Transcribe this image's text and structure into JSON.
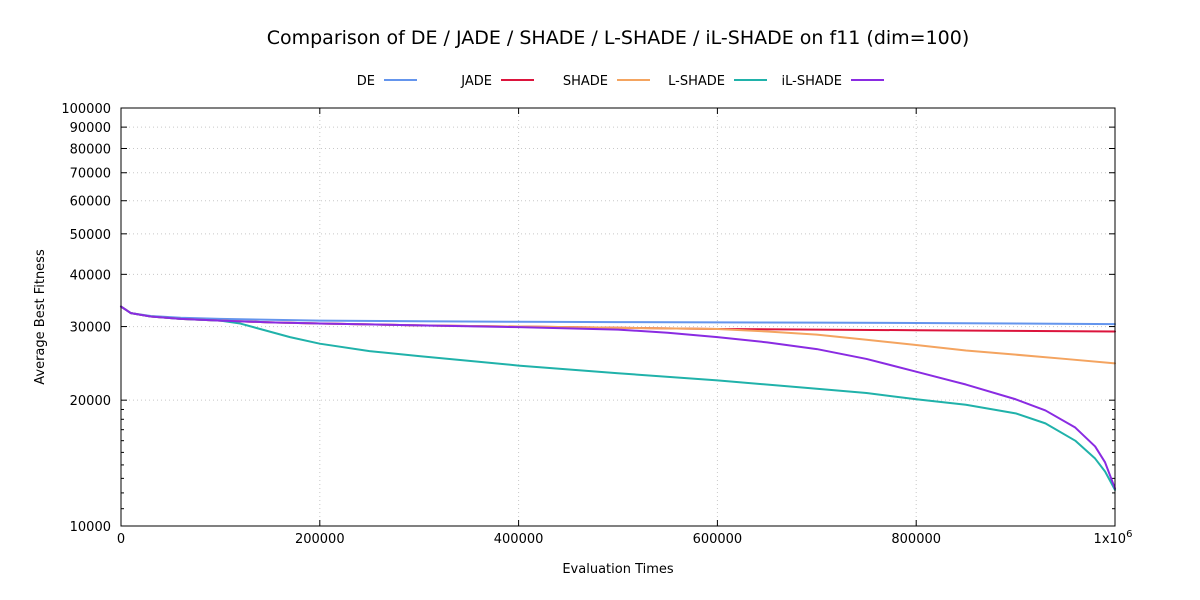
{
  "chart_data": {
    "type": "line",
    "title": "Comparison of DE / JADE / SHADE / L-SHADE / iL-SHADE on f11 (dim=100)",
    "xlabel": "Evaluation Times",
    "ylabel": "Average Best Fitness",
    "xlim": [
      0,
      1000000
    ],
    "ylim": [
      10000,
      100000
    ],
    "yscale": "log",
    "grid": true,
    "legend_position": "top-center",
    "x_ticks": [
      {
        "value": 0,
        "label": "0"
      },
      {
        "value": 200000,
        "label": "200000"
      },
      {
        "value": 400000,
        "label": "400000"
      },
      {
        "value": 600000,
        "label": "600000"
      },
      {
        "value": 800000,
        "label": "800000"
      },
      {
        "value": 1000000,
        "label": "1x10",
        "superscript": "6"
      }
    ],
    "y_ticks": [
      {
        "value": 10000,
        "label": "10000"
      },
      {
        "value": 20000,
        "label": "20000"
      },
      {
        "value": 30000,
        "label": "30000"
      },
      {
        "value": 40000,
        "label": "40000"
      },
      {
        "value": 50000,
        "label": "50000"
      },
      {
        "value": 60000,
        "label": "60000"
      },
      {
        "value": 70000,
        "label": "70000"
      },
      {
        "value": 80000,
        "label": "80000"
      },
      {
        "value": 90000,
        "label": "90000"
      },
      {
        "value": 100000,
        "label": "100000"
      }
    ],
    "series": [
      {
        "name": "DE",
        "color": "#6495ed",
        "x": [
          0,
          10000,
          30000,
          60000,
          100000,
          200000,
          300000,
          400000,
          500000,
          600000,
          700000,
          800000,
          900000,
          1000000
        ],
        "y": [
          33500,
          32300,
          31800,
          31500,
          31300,
          31000,
          30900,
          30800,
          30750,
          30700,
          30650,
          30600,
          30500,
          30400
        ]
      },
      {
        "name": "JADE",
        "color": "#dc143c",
        "x": [
          0,
          10000,
          30000,
          60000,
          100000,
          150000,
          200000,
          300000,
          400000,
          500000,
          600000,
          700000,
          800000,
          900000,
          1000000
        ],
        "y": [
          33500,
          32300,
          31700,
          31300,
          31000,
          30700,
          30500,
          30200,
          30000,
          29800,
          29600,
          29500,
          29400,
          29300,
          29200
        ]
      },
      {
        "name": "SHADE",
        "color": "#f4a460",
        "x": [
          0,
          10000,
          30000,
          60000,
          100000,
          150000,
          200000,
          300000,
          400000,
          500000,
          600000,
          650000,
          700000,
          750000,
          800000,
          850000,
          900000,
          950000,
          1000000
        ],
        "y": [
          33500,
          32300,
          31700,
          31300,
          31000,
          30700,
          30500,
          30200,
          30000,
          29800,
          29600,
          29200,
          28700,
          27900,
          27100,
          26300,
          25700,
          25100,
          24500
        ]
      },
      {
        "name": "L-SHADE",
        "color": "#20b2aa",
        "x": [
          0,
          10000,
          30000,
          60000,
          100000,
          120000,
          140000,
          170000,
          200000,
          250000,
          300000,
          400000,
          500000,
          600000,
          700000,
          750000,
          800000,
          850000,
          900000,
          930000,
          960000,
          980000,
          990000,
          1000000
        ],
        "y": [
          33500,
          32300,
          31700,
          31300,
          31000,
          30500,
          29600,
          28300,
          27300,
          26200,
          25500,
          24200,
          23200,
          22300,
          21300,
          20800,
          20100,
          19500,
          18600,
          17600,
          16000,
          14500,
          13500,
          12200
        ]
      },
      {
        "name": "iL-SHADE",
        "color": "#8a2be2",
        "x": [
          0,
          10000,
          30000,
          60000,
          100000,
          150000,
          200000,
          300000,
          400000,
          500000,
          550000,
          600000,
          650000,
          700000,
          750000,
          800000,
          850000,
          900000,
          930000,
          960000,
          980000,
          990000,
          1000000
        ],
        "y": [
          33500,
          32300,
          31700,
          31300,
          31000,
          30700,
          30500,
          30200,
          29900,
          29500,
          29000,
          28300,
          27500,
          26500,
          25100,
          23400,
          21800,
          20100,
          18900,
          17200,
          15500,
          14200,
          12300
        ]
      }
    ]
  }
}
